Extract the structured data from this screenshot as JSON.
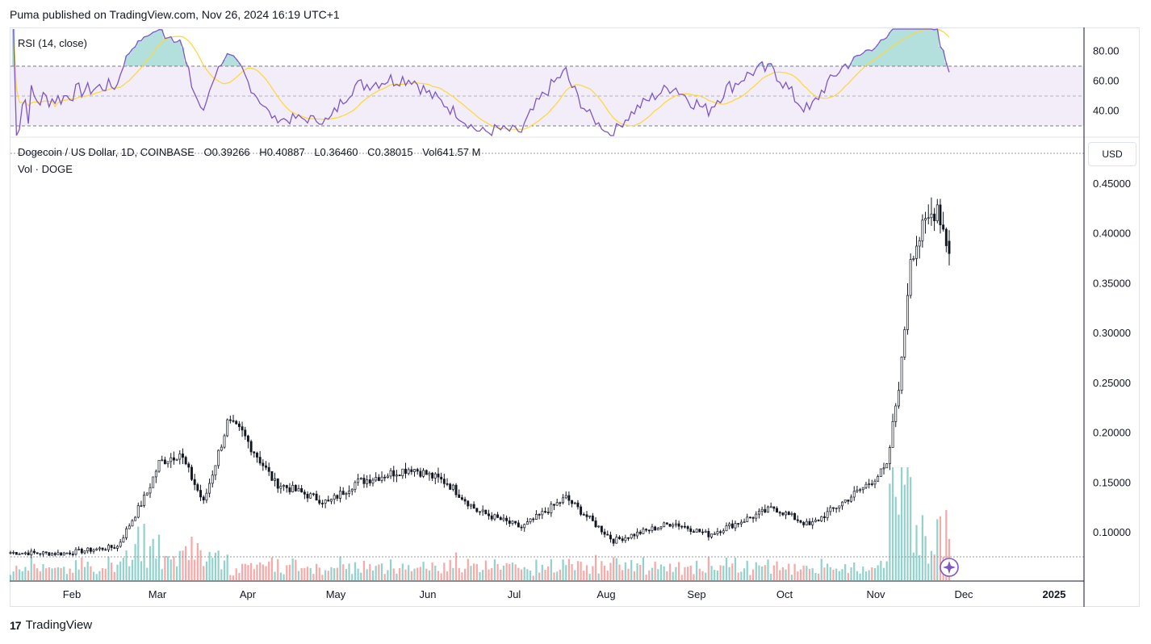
{
  "header": {
    "published": "Puma published on TradingView.com, Nov 26, 2024 16:19 UTC+1"
  },
  "rsi": {
    "label": "RSI (14, close)",
    "levels": [
      70,
      50,
      30
    ],
    "axis_labels": [
      "80.00",
      "60.00",
      "40.00"
    ]
  },
  "legend": {
    "symbol": "Dogecoin / US Dollar, 1D, COINBASE",
    "o_key": "O",
    "o_val": "0.39266",
    "h_key": "H",
    "h_val": "0.40887",
    "l_key": "L",
    "l_val": "0.36460",
    "c_key": "C",
    "c_val": "0.38015",
    "vol_key": "Vol",
    "vol_val": "641.57 M",
    "vol_label": "Vol · DOGE"
  },
  "currency": "USD",
  "footer": {
    "brand": "TradingView",
    "logo": "17"
  },
  "colors": {
    "up": "#26a69a",
    "down": "#ef5350",
    "candle": "#131722",
    "rsi": "#7e57c2",
    "rsi_ma": "#fdd835",
    "band": "#ede7f6"
  },
  "chart_data": {
    "type": "candlestick",
    "instrument": "Dogecoin / US Dollar",
    "interval": "1D",
    "exchange": "COINBASE",
    "x_ticks": [
      "Feb",
      "Mar",
      "Apr",
      "May",
      "Jun",
      "Jul",
      "Aug",
      "Sep",
      "Oct",
      "Nov",
      "Dec",
      "2025"
    ],
    "y_ticks": [
      "0.45000",
      "0.40000",
      "0.35000",
      "0.30000",
      "0.25000",
      "0.20000",
      "0.15000",
      "0.10000"
    ],
    "ylim": [
      0.055,
      0.48
    ],
    "last_candle": {
      "open": 0.39266,
      "high": 0.40887,
      "low": 0.3646,
      "close": 0.38015,
      "volume": "641.57 M"
    },
    "series": [
      {
        "name": "Dogecoin / US Dollar",
        "approx_close_path": [
          {
            "x": "Jan 15",
            "y": 0.08
          },
          {
            "x": "Feb 1",
            "y": 0.079
          },
          {
            "x": "Feb 20",
            "y": 0.086
          },
          {
            "x": "Mar 1",
            "y": 0.14
          },
          {
            "x": "Mar 5",
            "y": 0.17
          },
          {
            "x": "Mar 12",
            "y": 0.18
          },
          {
            "x": "Mar 20",
            "y": 0.13
          },
          {
            "x": "Mar 28",
            "y": 0.21
          },
          {
            "x": "Apr 2",
            "y": 0.2
          },
          {
            "x": "Apr 13",
            "y": 0.15
          },
          {
            "x": "May 1",
            "y": 0.13
          },
          {
            "x": "May 10",
            "y": 0.15
          },
          {
            "x": "May 29",
            "y": 0.165
          },
          {
            "x": "Jun 10",
            "y": 0.15
          },
          {
            "x": "Jun 20",
            "y": 0.122
          },
          {
            "x": "Jul 5",
            "y": 0.105
          },
          {
            "x": "Jul 20",
            "y": 0.135
          },
          {
            "x": "Aug 5",
            "y": 0.092
          },
          {
            "x": "Aug 25",
            "y": 0.11
          },
          {
            "x": "Sep 6",
            "y": 0.098
          },
          {
            "x": "Sep 28",
            "y": 0.125
          },
          {
            "x": "Oct 10",
            "y": 0.107
          },
          {
            "x": "Oct 28",
            "y": 0.145
          },
          {
            "x": "Nov 5",
            "y": 0.165
          },
          {
            "x": "Nov 10",
            "y": 0.27
          },
          {
            "x": "Nov 13",
            "y": 0.38
          },
          {
            "x": "Nov 22",
            "y": 0.43
          },
          {
            "x": "Nov 26",
            "y": 0.38
          }
        ]
      }
    ]
  }
}
